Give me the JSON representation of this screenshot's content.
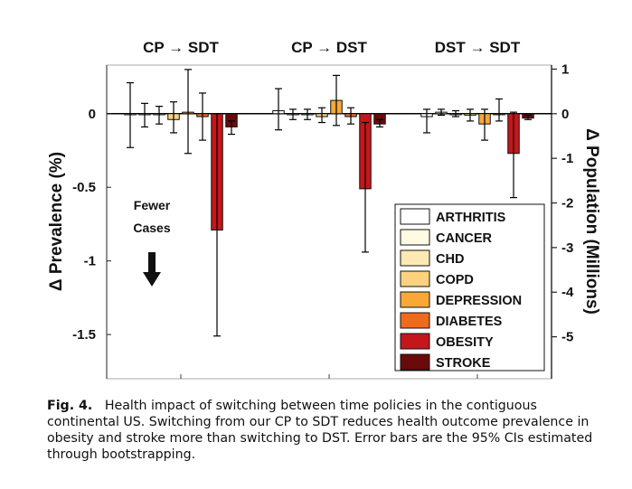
{
  "chart_data": {
    "type": "bar",
    "categories": [
      "CP → SDT",
      "CP → DST",
      "DST → SDT"
    ],
    "ylabel_left": "Δ Prevalence (%)",
    "ylabel_right": "Δ Population (Millions)",
    "ylim_left": [
      -1.8,
      0.33
    ],
    "ylim_right": [
      -5.94,
      1.09
    ],
    "yticks_left": [
      {
        "v": 0,
        "label": "0"
      },
      {
        "v": -0.5,
        "label": "-0.5"
      },
      {
        "v": -1,
        "label": "-1"
      },
      {
        "v": -1.5,
        "label": "-1.5"
      }
    ],
    "yticks_right": [
      {
        "v": 1,
        "label": "1"
      },
      {
        "v": 0,
        "label": "0"
      },
      {
        "v": -1,
        "label": "-1"
      },
      {
        "v": -2,
        "label": "-2"
      },
      {
        "v": -3,
        "label": "-3"
      },
      {
        "v": -4,
        "label": "-4"
      },
      {
        "v": -5,
        "label": "-5"
      }
    ],
    "series": [
      {
        "name": "ARTHRITIS",
        "color": "#ffffff",
        "values": [
          0.0,
          0.02,
          -0.02
        ],
        "ci_low": [
          -0.23,
          -0.11,
          -0.13
        ],
        "ci_high": [
          0.21,
          0.17,
          0.03
        ]
      },
      {
        "name": "CANCER",
        "color": "#fffbe3",
        "values": [
          0.0,
          0.0,
          0.01
        ],
        "ci_low": [
          -0.09,
          -0.04,
          -0.01
        ],
        "ci_high": [
          0.07,
          0.03,
          0.03
        ]
      },
      {
        "name": "CHD",
        "color": "#fde9b3",
        "values": [
          0.0,
          0.0,
          0.0
        ],
        "ci_low": [
          -0.07,
          -0.04,
          -0.02
        ],
        "ci_high": [
          0.05,
          0.03,
          0.02
        ]
      },
      {
        "name": "COPD",
        "color": "#fcd27f",
        "values": [
          -0.04,
          -0.02,
          -0.01
        ],
        "ci_low": [
          -0.13,
          -0.06,
          -0.05
        ],
        "ci_high": [
          0.08,
          0.04,
          0.03
        ]
      },
      {
        "name": "DEPRESSION",
        "color": "#f9a838",
        "values": [
          0.01,
          0.09,
          -0.07
        ],
        "ci_low": [
          -0.27,
          -0.08,
          -0.18
        ],
        "ci_high": [
          0.3,
          0.26,
          0.03
        ]
      },
      {
        "name": "DIABETES",
        "color": "#f06a1e",
        "values": [
          -0.02,
          -0.02,
          0.0
        ],
        "ci_low": [
          -0.18,
          -0.07,
          -0.05
        ],
        "ci_high": [
          0.14,
          0.04,
          0.1
        ]
      },
      {
        "name": "OBESITY",
        "color": "#c4171b",
        "values": [
          -0.79,
          -0.51,
          -0.27
        ],
        "ci_low": [
          -1.51,
          -0.94,
          -0.57
        ],
        "ci_high": [
          0.0,
          -0.06,
          0.01
        ]
      },
      {
        "name": "STROKE",
        "color": "#6b0a0a",
        "values": [
          -0.09,
          -0.07,
          -0.03
        ],
        "ci_low": [
          -0.14,
          -0.09,
          -0.04
        ],
        "ci_high": [
          -0.05,
          -0.04,
          -0.01
        ]
      }
    ],
    "annotation": {
      "line1": "Fewer",
      "line2": "Cases"
    },
    "legend": "bottom-right"
  },
  "caption": {
    "label": "Fig. 4.",
    "text": "Health impact of switching between time policies in the contiguous continental US. Switching from our CP to SDT reduces health outcome prevalence in obesity and stroke more than switching to DST. Error bars are the 95% CIs estimated through bootstrapping."
  }
}
